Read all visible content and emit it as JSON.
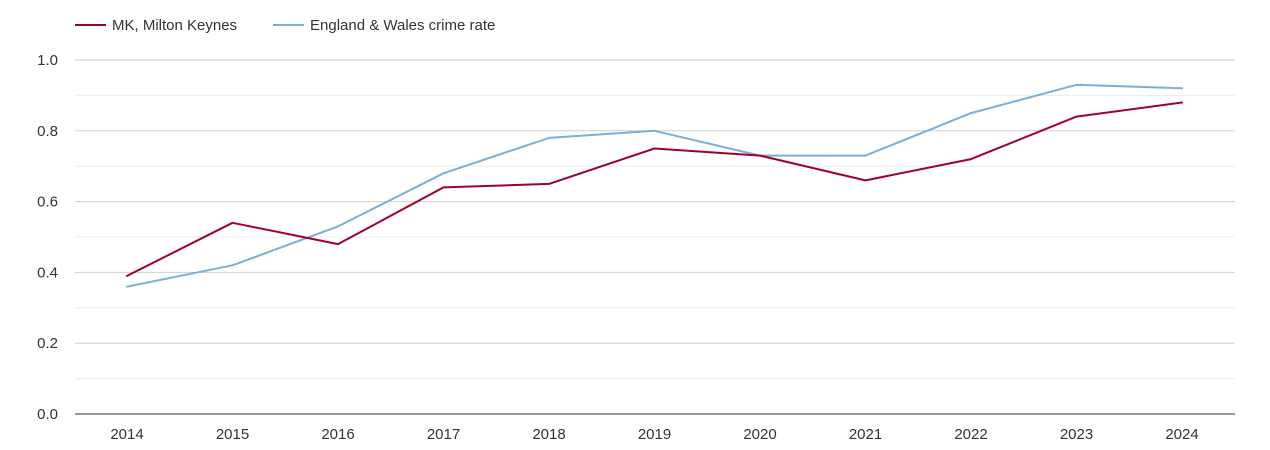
{
  "chart_data": {
    "type": "line",
    "categories": [
      "2014",
      "2015",
      "2016",
      "2017",
      "2018",
      "2019",
      "2020",
      "2021",
      "2022",
      "2023",
      "2024"
    ],
    "ylim": [
      0,
      1.0
    ],
    "y_ticks": [
      "0.0",
      "0.2",
      "0.4",
      "0.6",
      "0.8",
      "1.0"
    ],
    "grid": "horizontal",
    "legend_position": "top-left",
    "series": [
      {
        "name": "MK, Milton Keynes",
        "color": "#a0002c",
        "values": [
          0.39,
          0.54,
          0.48,
          0.64,
          0.65,
          0.75,
          0.73,
          0.66,
          0.72,
          0.84,
          0.88
        ]
      },
      {
        "name": "England & Wales crime rate",
        "color": "#7bafd4",
        "values": [
          0.36,
          0.42,
          0.53,
          0.68,
          0.78,
          0.8,
          0.73,
          0.73,
          0.85,
          0.93,
          0.92
        ]
      }
    ]
  }
}
